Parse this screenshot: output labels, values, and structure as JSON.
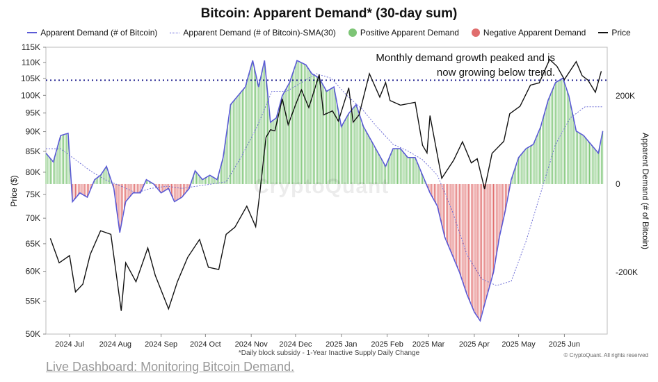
{
  "chart_data": {
    "type": "line",
    "title": "Bitcoin: Apparent Demand* (30-day sum)",
    "footnote": "*Daily block subsidy - 1-Year Inactive Supply Daily Change",
    "copyright": "© CryptoQuant. All rights reserved",
    "watermark": "CryptoQuant",
    "annotation_line1": "Monthly demand growth peaked and is",
    "annotation_line2": "now growing below trend.",
    "legend": [
      {
        "label": "Apparent Demand (# of Bitcoin)",
        "style": "line",
        "color": "#5b5bd6"
      },
      {
        "label": "Apparent Demand (# of Bitcoin)-SMA(30)",
        "style": "dotted",
        "color": "#5b5bd6"
      },
      {
        "label": "Positive Apparent Demand",
        "style": "circle",
        "color": "#7dc576"
      },
      {
        "label": "Negative Apparent Demand",
        "style": "circle",
        "color": "#e06d6d"
      },
      {
        "label": "Price",
        "style": "line",
        "color": "#111111"
      }
    ],
    "ylabel_left": "Price ($)",
    "ylabel_right": "Apparent Demand (# of Bitcoin)",
    "yticks_left": [
      "115K",
      "110K",
      "105K",
      "100K",
      "95K",
      "90K",
      "85K",
      "80K",
      "75K",
      "70K",
      "65K",
      "60K",
      "55K",
      "50K"
    ],
    "yticks_right": [
      "200K",
      "0",
      "-200K"
    ],
    "xticks": [
      "2024 Jul",
      "2024 Aug",
      "2024 Sep",
      "2024 Oct",
      "2024 Nov",
      "2024 Dec",
      "2025 Jan",
      "2025 Feb",
      "2025 Mar",
      "2025 Apr",
      "2025 May",
      "2025 Jun"
    ],
    "price_log_scale": true,
    "price_ylim": [
      50000,
      115000
    ],
    "demand_ylim": [
      -340000,
      310000
    ],
    "reference_price": 104500,
    "x_range": [
      "2024-06-15",
      "2025-06-30"
    ],
    "series": [
      {
        "name": "Price",
        "axis": "left",
        "points": [
          [
            "2024-06-18",
            66000
          ],
          [
            "2024-06-24",
            61500
          ],
          [
            "2024-07-01",
            62800
          ],
          [
            "2024-07-05",
            56500
          ],
          [
            "2024-07-10",
            57800
          ],
          [
            "2024-07-15",
            63000
          ],
          [
            "2024-07-22",
            67500
          ],
          [
            "2024-07-29",
            66800
          ],
          [
            "2024-08-05",
            53500
          ],
          [
            "2024-08-08",
            61500
          ],
          [
            "2024-08-15",
            58200
          ],
          [
            "2024-08-23",
            64200
          ],
          [
            "2024-08-28",
            59300
          ],
          [
            "2024-09-06",
            53800
          ],
          [
            "2024-09-12",
            58200
          ],
          [
            "2024-09-19",
            62500
          ],
          [
            "2024-09-27",
            65800
          ],
          [
            "2024-10-03",
            60700
          ],
          [
            "2024-10-10",
            60300
          ],
          [
            "2024-10-15",
            66800
          ],
          [
            "2024-10-21",
            68200
          ],
          [
            "2024-10-29",
            72500
          ],
          [
            "2024-11-04",
            68300
          ],
          [
            "2024-11-07",
            75800
          ],
          [
            "2024-11-11",
            88500
          ],
          [
            "2024-11-14",
            90500
          ],
          [
            "2024-11-17",
            90200
          ],
          [
            "2024-11-22",
            99000
          ],
          [
            "2024-11-26",
            91800
          ],
          [
            "2024-12-01",
            97300
          ],
          [
            "2024-12-05",
            101600
          ],
          [
            "2024-12-10",
            96500
          ],
          [
            "2024-12-17",
            106200
          ],
          [
            "2024-12-20",
            94500
          ],
          [
            "2024-12-26",
            95600
          ],
          [
            "2024-12-30",
            92800
          ],
          [
            "2025-01-06",
            102200
          ],
          [
            "2025-01-09",
            92500
          ],
          [
            "2025-01-13",
            94500
          ],
          [
            "2025-01-20",
            106500
          ],
          [
            "2025-01-27",
            99500
          ],
          [
            "2025-01-31",
            103800
          ],
          [
            "2025-02-03",
            98500
          ],
          [
            "2025-02-10",
            97200
          ],
          [
            "2025-02-20",
            98000
          ],
          [
            "2025-02-25",
            86500
          ],
          [
            "2025-02-28",
            84600
          ],
          [
            "2025-03-02",
            94300
          ],
          [
            "2025-03-10",
            78600
          ],
          [
            "2025-03-18",
            82800
          ],
          [
            "2025-03-24",
            87400
          ],
          [
            "2025-03-30",
            82200
          ],
          [
            "2025-04-03",
            83200
          ],
          [
            "2025-04-08",
            76200
          ],
          [
            "2025-04-13",
            84500
          ],
          [
            "2025-04-21",
            87500
          ],
          [
            "2025-04-25",
            94800
          ],
          [
            "2025-05-02",
            96900
          ],
          [
            "2025-05-09",
            103000
          ],
          [
            "2025-05-15",
            103700
          ],
          [
            "2025-05-22",
            111000
          ],
          [
            "2025-05-27",
            108800
          ],
          [
            "2025-06-01",
            104700
          ],
          [
            "2025-06-09",
            110300
          ],
          [
            "2025-06-13",
            105900
          ],
          [
            "2025-06-17",
            104500
          ],
          [
            "2025-06-22",
            100900
          ],
          [
            "2025-06-26",
            107300
          ]
        ]
      },
      {
        "name": "Apparent Demand (# of Bitcoin)",
        "axis": "right",
        "points": [
          [
            "2024-06-15",
            70000
          ],
          [
            "2024-06-20",
            50000
          ],
          [
            "2024-06-25",
            110000
          ],
          [
            "2024-06-30",
            115000
          ],
          [
            "2024-07-03",
            -40000
          ],
          [
            "2024-07-08",
            -20000
          ],
          [
            "2024-07-13",
            -30000
          ],
          [
            "2024-07-18",
            10000
          ],
          [
            "2024-07-22",
            20000
          ],
          [
            "2024-07-26",
            40000
          ],
          [
            "2024-07-31",
            -10000
          ],
          [
            "2024-08-04",
            -110000
          ],
          [
            "2024-08-08",
            -40000
          ],
          [
            "2024-08-13",
            -20000
          ],
          [
            "2024-08-18",
            -20000
          ],
          [
            "2024-08-22",
            10000
          ],
          [
            "2024-08-27",
            0
          ],
          [
            "2024-09-01",
            -20000
          ],
          [
            "2024-09-06",
            -10000
          ],
          [
            "2024-09-10",
            -40000
          ],
          [
            "2024-09-15",
            -30000
          ],
          [
            "2024-09-20",
            -10000
          ],
          [
            "2024-09-24",
            30000
          ],
          [
            "2024-09-29",
            10000
          ],
          [
            "2024-10-04",
            20000
          ],
          [
            "2024-10-09",
            10000
          ],
          [
            "2024-10-13",
            60000
          ],
          [
            "2024-10-18",
            180000
          ],
          [
            "2024-10-23",
            200000
          ],
          [
            "2024-10-28",
            220000
          ],
          [
            "2024-11-02",
            280000
          ],
          [
            "2024-11-06",
            220000
          ],
          [
            "2024-11-10",
            280000
          ],
          [
            "2024-11-14",
            140000
          ],
          [
            "2024-11-18",
            150000
          ],
          [
            "2024-11-22",
            200000
          ],
          [
            "2024-11-27",
            230000
          ],
          [
            "2024-12-02",
            280000
          ],
          [
            "2024-12-08",
            270000
          ],
          [
            "2024-12-12",
            250000
          ],
          [
            "2024-12-17",
            240000
          ],
          [
            "2024-12-22",
            210000
          ],
          [
            "2024-12-27",
            220000
          ],
          [
            "2025-01-01",
            130000
          ],
          [
            "2025-01-06",
            160000
          ],
          [
            "2025-01-11",
            180000
          ],
          [
            "2025-01-16",
            130000
          ],
          [
            "2025-01-21",
            100000
          ],
          [
            "2025-01-26",
            70000
          ],
          [
            "2025-01-31",
            40000
          ],
          [
            "2025-02-05",
            80000
          ],
          [
            "2025-02-10",
            80000
          ],
          [
            "2025-02-15",
            60000
          ],
          [
            "2025-02-20",
            60000
          ],
          [
            "2025-02-25",
            20000
          ],
          [
            "2025-03-02",
            -20000
          ],
          [
            "2025-03-07",
            -50000
          ],
          [
            "2025-03-12",
            -120000
          ],
          [
            "2025-03-17",
            -160000
          ],
          [
            "2025-03-22",
            -200000
          ],
          [
            "2025-03-27",
            -250000
          ],
          [
            "2025-04-01",
            -290000
          ],
          [
            "2025-04-05",
            -310000
          ],
          [
            "2025-04-09",
            -260000
          ],
          [
            "2025-04-14",
            -200000
          ],
          [
            "2025-04-18",
            -120000
          ],
          [
            "2025-04-22",
            -60000
          ],
          [
            "2025-04-26",
            10000
          ],
          [
            "2025-05-01",
            60000
          ],
          [
            "2025-05-06",
            80000
          ],
          [
            "2025-05-11",
            90000
          ],
          [
            "2025-05-16",
            130000
          ],
          [
            "2025-05-21",
            190000
          ],
          [
            "2025-05-26",
            230000
          ],
          [
            "2025-05-31",
            240000
          ],
          [
            "2025-06-04",
            200000
          ],
          [
            "2025-06-09",
            120000
          ],
          [
            "2025-06-14",
            110000
          ],
          [
            "2025-06-19",
            90000
          ],
          [
            "2025-06-24",
            70000
          ],
          [
            "2025-06-27",
            120000
          ]
        ]
      },
      {
        "name": "Apparent Demand (# of Bitcoin)-SMA(30)",
        "axis": "right",
        "points": [
          [
            "2024-06-15",
            80000
          ],
          [
            "2024-06-25",
            80000
          ],
          [
            "2024-07-05",
            55000
          ],
          [
            "2024-07-15",
            30000
          ],
          [
            "2024-07-25",
            10000
          ],
          [
            "2024-08-05",
            -5000
          ],
          [
            "2024-08-15",
            -20000
          ],
          [
            "2024-08-25",
            -10000
          ],
          [
            "2024-09-05",
            -5000
          ],
          [
            "2024-09-15",
            -10000
          ],
          [
            "2024-09-25",
            -5000
          ],
          [
            "2024-10-05",
            0
          ],
          [
            "2024-10-15",
            5000
          ],
          [
            "2024-10-25",
            60000
          ],
          [
            "2024-11-05",
            130000
          ],
          [
            "2024-11-15",
            210000
          ],
          [
            "2024-11-25",
            210000
          ],
          [
            "2024-12-05",
            230000
          ],
          [
            "2024-12-15",
            250000
          ],
          [
            "2024-12-25",
            240000
          ],
          [
            "2025-01-05",
            200000
          ],
          [
            "2025-01-15",
            170000
          ],
          [
            "2025-01-25",
            130000
          ],
          [
            "2025-02-05",
            90000
          ],
          [
            "2025-02-15",
            75000
          ],
          [
            "2025-02-25",
            55000
          ],
          [
            "2025-03-07",
            20000
          ],
          [
            "2025-03-17",
            -60000
          ],
          [
            "2025-03-27",
            -160000
          ],
          [
            "2025-04-06",
            -215000
          ],
          [
            "2025-04-16",
            -230000
          ],
          [
            "2025-04-26",
            -220000
          ],
          [
            "2025-05-06",
            -130000
          ],
          [
            "2025-05-16",
            -20000
          ],
          [
            "2025-05-26",
            90000
          ],
          [
            "2025-06-05",
            150000
          ],
          [
            "2025-06-15",
            175000
          ],
          [
            "2025-06-27",
            175000
          ]
        ]
      }
    ]
  },
  "footer": {
    "link_text": "Live Dashboard: Monitoring Bitcoin Demand."
  }
}
